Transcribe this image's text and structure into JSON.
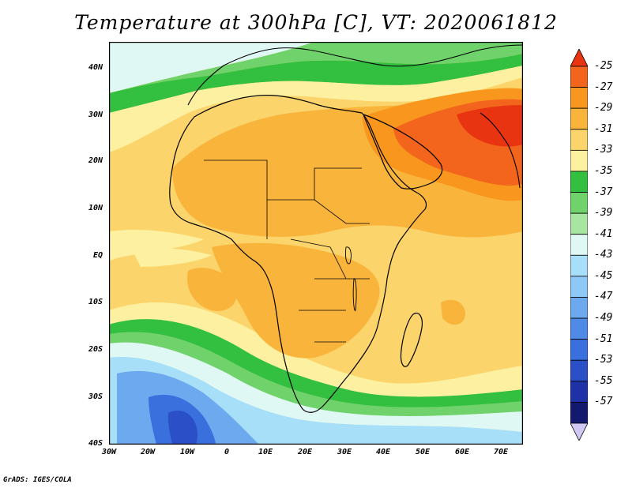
{
  "title": "Temperature at 300hPa [C], VT: 2020061812",
  "credit": "GrADS: IGES/COLA",
  "map": {
    "lat_ticks": [
      "40N",
      "30N",
      "20N",
      "10N",
      "EQ",
      "10S",
      "20S",
      "30S",
      "40S"
    ],
    "lon_ticks": [
      "30W",
      "20W",
      "10W",
      "0",
      "10E",
      "20E",
      "30E",
      "40E",
      "50E",
      "60E",
      "70E"
    ]
  },
  "colorbar": {
    "labels": [
      "-25",
      "-27",
      "-29",
      "-31",
      "-33",
      "-35",
      "-37",
      "-39",
      "-41",
      "-43",
      "-45",
      "-47",
      "-49",
      "-51",
      "-53",
      "-55",
      "-57"
    ],
    "colors": [
      "#e83410",
      "#f3641c",
      "#f8961e",
      "#f9b43c",
      "#fbd56b",
      "#fdf0a0",
      "#33bf40",
      "#6fd26a",
      "#a6e6a0",
      "#dff8f3",
      "#a8dff8",
      "#8dc8f6",
      "#6ca9ef",
      "#4f8ae6",
      "#3a70de",
      "#2a4fc6",
      "#1f31a6",
      "#13196e",
      "#d2c8f4"
    ]
  }
}
